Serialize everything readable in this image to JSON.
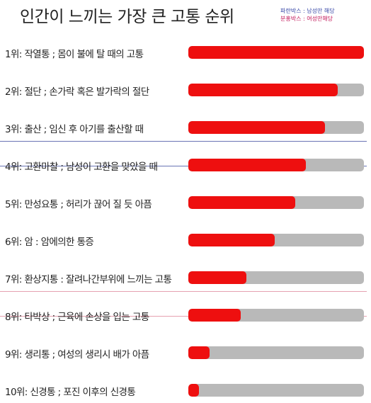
{
  "title": "인간이 느끼는 가장 큰 고통 순위",
  "legend": {
    "blue": "파란박스 : 남성만 해당",
    "pink": "분홍박스 : 여성만해당"
  },
  "colors": {
    "bar_fill": "#ee0f0f",
    "bar_track": "#b9b9b9",
    "male_box": "#6a74b5",
    "female_box": "#e6a1b0"
  },
  "chart_data": {
    "type": "bar",
    "orientation": "horizontal",
    "title": "인간이 느끼는 가장 큰 고통 순위",
    "categories": [
      "1위: 작열통 ; 몸이 불에 탈 때의 고통",
      "2위: 절단 ; 손가락 혹은 발가락의 절단",
      "3위: 출산 ; 임신 후 아기를 출산할 때",
      "4위: 고환마찰 ; 남성이 고환을 맞았을 때",
      "5위: 만성요통 ; 허리가 끊어 질 듯 아픔",
      "6위: 암 : 암에의한 통증",
      "7위: 환상지통 : 잘려나간부위에 느끼는 고통",
      "8위: 타박상 ; 근육에 손상을 입는 고통",
      "9위: 생리통 ; 여성의 생리시 배가 아픔",
      "10위: 신경통 ; 포진 이후의 신경통"
    ],
    "values": [
      100,
      85,
      78,
      67,
      61,
      49,
      33,
      30,
      12,
      6
    ],
    "xlim": [
      0,
      100
    ],
    "highlight": {
      "male_only": [
        3
      ],
      "female_only": [
        8
      ]
    }
  }
}
